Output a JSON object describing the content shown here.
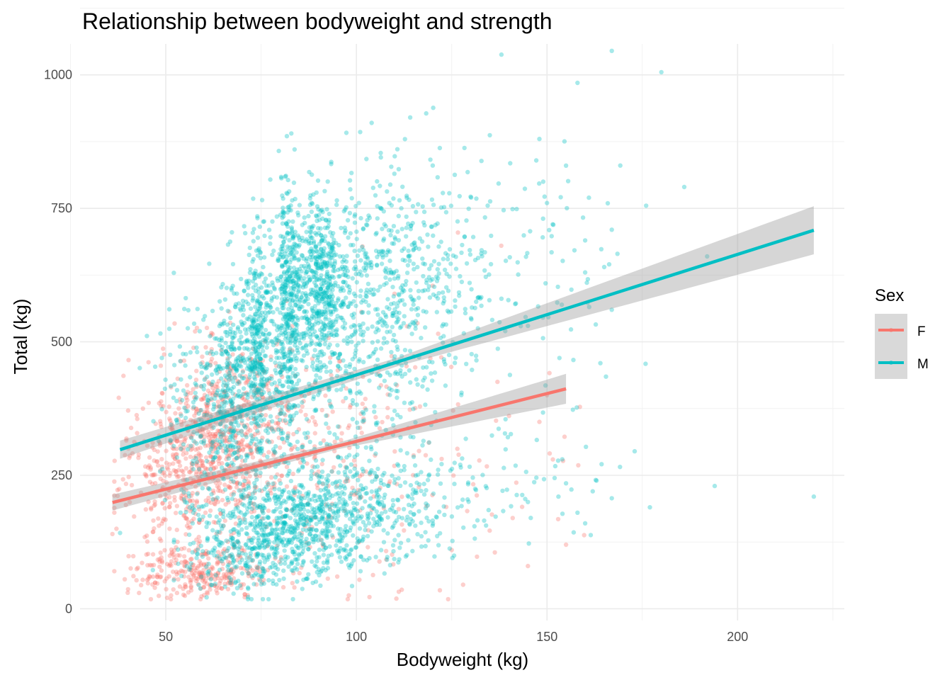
{
  "chart_data": {
    "type": "scatter",
    "title": "Relationship between bodyweight and strength",
    "xlabel": "Bodyweight (kg)",
    "ylabel": "Total (kg)",
    "xlim": [
      27.5,
      228
    ],
    "ylim": [
      -22,
      1058
    ],
    "x_ticks": [
      50,
      100,
      150,
      200
    ],
    "y_ticks": [
      0,
      250,
      500,
      750,
      1000
    ],
    "x_tick_labels": [
      "50",
      "100",
      "150",
      "200"
    ],
    "y_tick_labels": [
      "0",
      "250",
      "500",
      "750",
      "1000"
    ],
    "grid": true,
    "legend": {
      "title": "Sex",
      "position": "right",
      "entries": [
        {
          "label": "F",
          "color": "#F8766D"
        },
        {
          "label": "M",
          "color": "#00BFC4"
        }
      ]
    },
    "series": [
      {
        "name": "F",
        "color": "#F8766D",
        "point_opacity": 0.35,
        "fit": {
          "x": [
            36,
            155
          ],
          "y": [
            199,
            412
          ],
          "se": [
            [
              36,
              15
            ],
            [
              95,
              6
            ],
            [
              155,
              28
            ]
          ]
        },
        "clusters": [
          {
            "x": 62,
            "sx": 9,
            "y": 310,
            "sy": 80,
            "n": 480
          },
          {
            "x": 72,
            "sx": 8,
            "y": 390,
            "sy": 55,
            "n": 170
          },
          {
            "x": 60,
            "sx": 9,
            "y": 70,
            "sy": 25,
            "n": 280
          },
          {
            "x": 52,
            "sx": 8,
            "y": 230,
            "sy": 70,
            "n": 180
          },
          {
            "x": 85,
            "sx": 16,
            "y": 290,
            "sy": 110,
            "n": 210
          },
          {
            "x": 110,
            "sx": 25,
            "y": 240,
            "sy": 140,
            "n": 110
          }
        ],
        "points": [
          [
            36,
            140
          ],
          [
            40,
            30
          ],
          [
            44,
            375
          ],
          [
            155,
            120
          ],
          [
            145,
            80
          ],
          [
            128,
            45
          ],
          [
            138,
            680
          ],
          [
            120,
            605
          ],
          [
            116,
            535
          ],
          [
            137,
            425
          ],
          [
            150,
            400
          ],
          [
            148,
            350
          ],
          [
            110,
            590
          ],
          [
            98,
            25
          ],
          [
            125,
            110
          ],
          [
            141,
            170
          ]
        ]
      },
      {
        "name": "M",
        "color": "#00BFC4",
        "point_opacity": 0.35,
        "fit": {
          "x": [
            38,
            220
          ],
          "y": [
            298,
            709
          ],
          "se": [
            [
              38,
              17
            ],
            [
              110,
              8
            ],
            [
              220,
              45
            ]
          ]
        },
        "clusters": [
          {
            "x": 90,
            "sx": 4,
            "y": 600,
            "sy": 85,
            "n": 520
          },
          {
            "x": 82,
            "sx": 1.8,
            "y": 550,
            "sy": 120,
            "n": 400
          },
          {
            "x": 74,
            "sx": 1.8,
            "y": 500,
            "sy": 110,
            "n": 380
          },
          {
            "x": 67,
            "sx": 2.2,
            "y": 430,
            "sy": 100,
            "n": 240
          },
          {
            "x": 104,
            "sx": 8,
            "y": 590,
            "sy": 110,
            "n": 380
          },
          {
            "x": 60,
            "sx": 6,
            "y": 360,
            "sy": 110,
            "n": 220
          },
          {
            "x": 84,
            "sx": 10,
            "y": 160,
            "sy": 45,
            "n": 460
          },
          {
            "x": 72,
            "sx": 9,
            "y": 110,
            "sy": 45,
            "n": 280
          },
          {
            "x": 100,
            "sx": 12,
            "y": 190,
            "sy": 50,
            "n": 340
          },
          {
            "x": 120,
            "sx": 12,
            "y": 640,
            "sy": 100,
            "n": 180
          },
          {
            "x": 135,
            "sx": 18,
            "y": 600,
            "sy": 150,
            "n": 130
          },
          {
            "x": 130,
            "sx": 15,
            "y": 220,
            "sy": 50,
            "n": 90
          },
          {
            "x": 95,
            "sx": 15,
            "y": 400,
            "sy": 110,
            "n": 220
          }
        ],
        "points": [
          [
            167,
            1045
          ],
          [
            180,
            1005
          ],
          [
            158,
            985
          ],
          [
            104,
            910
          ],
          [
            101,
            893
          ],
          [
            135,
            887
          ],
          [
            148,
            880
          ],
          [
            186,
            790
          ],
          [
            176,
            755
          ],
          [
            161,
            770
          ],
          [
            167,
            710
          ],
          [
            149,
            800
          ],
          [
            150,
            760
          ],
          [
            155,
            830
          ],
          [
            160,
            690
          ],
          [
            165,
            640
          ],
          [
            160,
            630
          ],
          [
            192,
            660
          ],
          [
            167,
            560
          ],
          [
            164,
            460
          ],
          [
            173,
            295
          ],
          [
            194,
            230
          ],
          [
            177,
            190
          ],
          [
            220,
            210
          ],
          [
            167,
            207
          ],
          [
            163,
            240
          ],
          [
            158,
            180
          ],
          [
            160,
            160
          ],
          [
            157,
            143
          ],
          [
            153,
            210
          ],
          [
            145,
            200
          ],
          [
            152,
            245
          ],
          [
            154,
            280
          ],
          [
            155,
            235
          ],
          [
            162,
            220
          ],
          [
            38,
            142
          ],
          [
            126,
            470
          ]
        ]
      }
    ]
  }
}
